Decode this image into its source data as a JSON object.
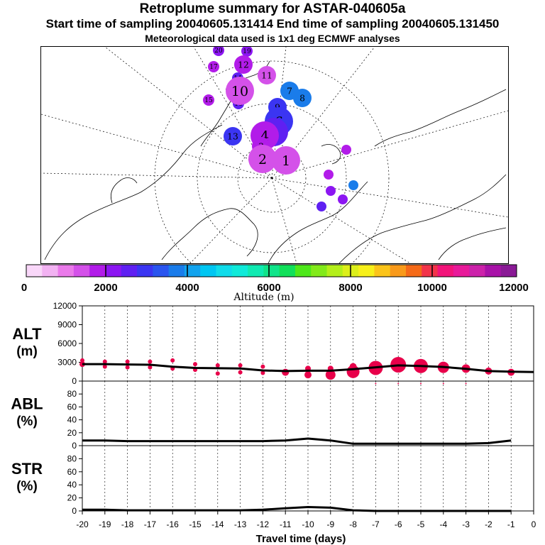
{
  "titles": {
    "main": "Retroplume summary for ASTAR-040605a",
    "sampling": "Start time of sampling 20040605.131414     End time of sampling 20040605.131450",
    "met": "Meteorological data used is 1x1 deg ECMWF analyses"
  },
  "colors": {
    "alt_points": "#e8004a",
    "line": "#000000",
    "scale": [
      "#f9d7f9",
      "#f2b2f2",
      "#ea7aea",
      "#d451e9",
      "#b21ce9",
      "#8c16f2",
      "#5f20f2",
      "#3b35f2",
      "#2a55ef",
      "#1a7cea",
      "#12a3ee",
      "#00c6f2",
      "#10dcea",
      "#10ead9",
      "#10eab2",
      "#10e48a",
      "#11e05a",
      "#4ee81a",
      "#82ea1a",
      "#b4ef1a",
      "#dcef1a",
      "#f7f01a",
      "#fbc41a",
      "#f99a1a",
      "#f56a18",
      "#f2344a",
      "#f2147a",
      "#e81a9a",
      "#cc22aa",
      "#a812a8",
      "#8a1a96"
    ]
  },
  "altitude_scale": {
    "label": "Altitude (m)",
    "ticks": [
      "0",
      "2000",
      "4000",
      "6000",
      "8000",
      "10000",
      "12000"
    ]
  },
  "map": {
    "labels": [
      {
        "text": "20",
        "color": "#8c16f2",
        "size": "small"
      },
      {
        "text": "19",
        "color": "#8c16f2",
        "size": "small"
      },
      {
        "text": "17",
        "color": "#b21ce9",
        "size": "small"
      },
      {
        "text": "16",
        "color": "#5f20f2",
        "size": "small"
      },
      {
        "text": "15",
        "color": "#b21ce9",
        "size": "small"
      },
      {
        "text": "14",
        "color": "#5f20f2",
        "size": "small"
      },
      {
        "text": "13",
        "color": "#3b35f2",
        "size": "medium"
      },
      {
        "text": "12",
        "color": "#b21ce9",
        "size": "medium"
      },
      {
        "text": "11",
        "color": "#d451e9",
        "size": "medium"
      },
      {
        "text": "10",
        "color": "#d451e9",
        "size": "large"
      },
      {
        "text": "9",
        "color": "#3b35f2",
        "size": "medium"
      },
      {
        "text": "8",
        "color": "#1a7cea",
        "size": "medium"
      },
      {
        "text": "7",
        "color": "#1a7cea",
        "size": "medium"
      },
      {
        "text": "6",
        "color": "#3b35f2",
        "size": "large"
      },
      {
        "text": "5",
        "color": "#5f20f2",
        "size": "large"
      },
      {
        "text": "4",
        "color": "#b21ce9",
        "size": "large"
      },
      {
        "text": "3",
        "color": "#b21ce9",
        "size": "medium"
      },
      {
        "text": "2",
        "color": "#d451e9",
        "size": "large"
      },
      {
        "text": "1",
        "color": "#d451e9",
        "size": "large"
      }
    ]
  },
  "chart_data": [
    {
      "type": "line",
      "name": "ALT",
      "ylabel_line1": "ALT",
      "ylabel_line2": "(m)",
      "ylim": [
        0,
        12000
      ],
      "yticks": [
        "0",
        "3000",
        "6000",
        "9000",
        "12000"
      ],
      "ytick_values": [
        0,
        3000,
        6000,
        9000,
        12000
      ],
      "line_x": [
        -20,
        -19,
        -18,
        -17,
        -16,
        -15,
        -14,
        -13,
        -12,
        -11,
        -10,
        -9,
        -8,
        -7,
        -6,
        -5,
        -4,
        -3,
        -2,
        -1,
        0
      ],
      "line_y": [
        2700,
        2700,
        2650,
        2600,
        2300,
        2100,
        2050,
        2000,
        1700,
        1600,
        1650,
        1650,
        1900,
        2200,
        2500,
        2400,
        2250,
        1950,
        1600,
        1500,
        1450
      ],
      "points": [
        {
          "x": -20,
          "y": 2700,
          "r": 4
        },
        {
          "x": -20,
          "y": 3300,
          "r": 3
        },
        {
          "x": -19,
          "y": 2300,
          "r": 3
        },
        {
          "x": -19,
          "y": 3100,
          "r": 3
        },
        {
          "x": -18,
          "y": 2200,
          "r": 3
        },
        {
          "x": -18,
          "y": 3100,
          "r": 3
        },
        {
          "x": -17,
          "y": 2200,
          "r": 3
        },
        {
          "x": -17,
          "y": 3100,
          "r": 3
        },
        {
          "x": -16,
          "y": 2000,
          "r": 3
        },
        {
          "x": -16,
          "y": 3300,
          "r": 3
        },
        {
          "x": -15,
          "y": 1800,
          "r": 3
        },
        {
          "x": -15,
          "y": 2700,
          "r": 3
        },
        {
          "x": -14,
          "y": 1200,
          "r": 3
        },
        {
          "x": -14,
          "y": 2500,
          "r": 3
        },
        {
          "x": -13,
          "y": 1400,
          "r": 3
        },
        {
          "x": -13,
          "y": 2500,
          "r": 3
        },
        {
          "x": -12,
          "y": 1300,
          "r": 3
        },
        {
          "x": -12,
          "y": 2300,
          "r": 3
        },
        {
          "x": -11,
          "y": 1400,
          "r": 5
        },
        {
          "x": -10,
          "y": 1000,
          "r": 5
        },
        {
          "x": -10,
          "y": 2000,
          "r": 4
        },
        {
          "x": -9,
          "y": 1000,
          "r": 7
        },
        {
          "x": -9,
          "y": 2000,
          "r": 4
        },
        {
          "x": -8,
          "y": 1500,
          "r": 9
        },
        {
          "x": -8,
          "y": 2300,
          "r": 5
        },
        {
          "x": -7,
          "y": 2100,
          "r": 10
        },
        {
          "x": -6,
          "y": 2600,
          "r": 11
        },
        {
          "x": -5,
          "y": 2400,
          "r": 10
        },
        {
          "x": -4,
          "y": 2200,
          "r": 8
        },
        {
          "x": -3,
          "y": 2000,
          "r": 6
        },
        {
          "x": -2,
          "y": 1600,
          "r": 5
        },
        {
          "x": -1,
          "y": 1400,
          "r": 5
        },
        {
          "x": -7,
          "y": -500,
          "r": 1
        },
        {
          "x": -6,
          "y": -400,
          "r": 1
        },
        {
          "x": -5,
          "y": -500,
          "r": 1
        },
        {
          "x": -4,
          "y": -400,
          "r": 1
        },
        {
          "x": -3,
          "y": -500,
          "r": 1
        }
      ]
    },
    {
      "type": "line",
      "name": "ABL",
      "ylabel_line1": "ABL",
      "ylabel_line2": "(%)",
      "ylim": [
        0,
        100
      ],
      "yticks": [
        "0",
        "20",
        "40",
        "60",
        "80"
      ],
      "ytick_values": [
        0,
        20,
        40,
        60,
        80
      ],
      "line_x": [
        -20,
        -19,
        -18,
        -17,
        -16,
        -15,
        -14,
        -13,
        -12,
        -11,
        -10,
        -9,
        -8,
        -7,
        -6,
        -5,
        -4,
        -3,
        -2,
        -1
      ],
      "line_y": [
        8,
        8,
        7,
        7,
        7,
        7,
        7,
        7,
        7,
        8,
        11,
        8,
        3,
        3,
        3,
        3,
        3,
        3,
        4,
        8
      ]
    },
    {
      "type": "line",
      "name": "STR",
      "ylabel_line1": "STR",
      "ylabel_line2": "(%)",
      "ylim": [
        0,
        100
      ],
      "yticks": [
        "0",
        "20",
        "40",
        "60",
        "80"
      ],
      "ytick_values": [
        0,
        20,
        40,
        60,
        80
      ],
      "line_x": [
        -20,
        -19,
        -18,
        -17,
        -16,
        -15,
        -14,
        -13,
        -12,
        -11,
        -10,
        -9,
        -8,
        -7,
        -6,
        -5,
        -4,
        -3,
        -2,
        -1
      ],
      "line_y": [
        2,
        2,
        1,
        1,
        1,
        1,
        1,
        1,
        2,
        4,
        6,
        5,
        1,
        0,
        0,
        0,
        0,
        0,
        0,
        0
      ],
      "xlabel": "Travel time (days)",
      "xticks": [
        "-20",
        "-19",
        "-18",
        "-17",
        "-16",
        "-15",
        "-14",
        "-13",
        "-12",
        "-11",
        "-10",
        "-9",
        "-8",
        "-7",
        "-6",
        "-5",
        "-4",
        "-3",
        "-2",
        "-1",
        "0"
      ],
      "xtick_values": [
        -20,
        -19,
        -18,
        -17,
        -16,
        -15,
        -14,
        -13,
        -12,
        -11,
        -10,
        -9,
        -8,
        -7,
        -6,
        -5,
        -4,
        -3,
        -2,
        -1,
        0
      ]
    }
  ]
}
